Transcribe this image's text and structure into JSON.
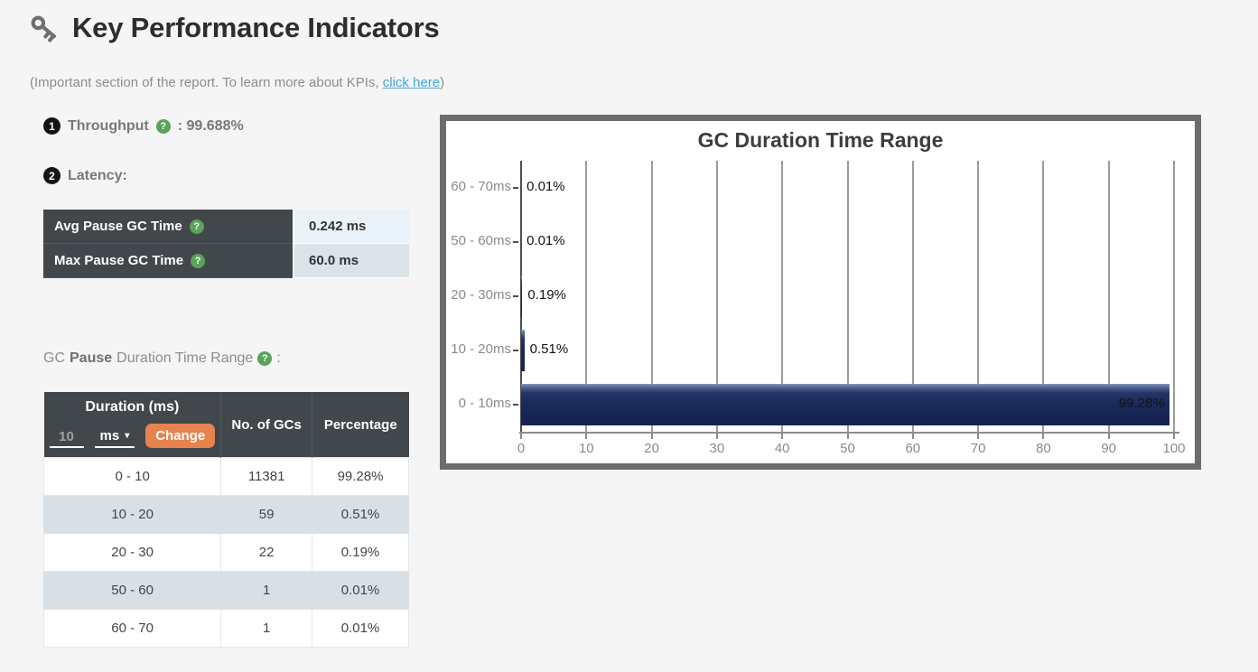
{
  "header": {
    "title": "Key Performance Indicators",
    "subtitle_prefix": "(Important section of the report. To learn more about KPIs, ",
    "subtitle_link": "click here",
    "subtitle_suffix": ")"
  },
  "icons": {
    "help": "?",
    "caret_down": "▾"
  },
  "kpi": {
    "items": [
      {
        "num": "1",
        "label": "Throughput",
        "suffix": ": 99.688%"
      },
      {
        "num": "2",
        "label": "Latency:",
        "suffix": ""
      }
    ]
  },
  "latency_table": {
    "rows": [
      {
        "label": "Avg Pause GC Time",
        "value": "0.242 ms"
      },
      {
        "label": "Max Pause GC Time",
        "value": "60.0 ms"
      }
    ]
  },
  "duration_section": {
    "heading_pre": "GC",
    "heading_bold": "Pause",
    "heading_post": "Duration Time Range",
    "colon": ":"
  },
  "duration_table": {
    "col1_header": "Duration (ms)",
    "input_value": "10",
    "unit_label": "ms",
    "change_button": "Change",
    "col2_header": "No. of GCs",
    "col3_header": "Percentage",
    "rows": [
      {
        "range": "0 - 10",
        "count": "11381",
        "pct": "99.28%"
      },
      {
        "range": "10 - 20",
        "count": "59",
        "pct": "0.51%"
      },
      {
        "range": "20 - 30",
        "count": "22",
        "pct": "0.19%"
      },
      {
        "range": "50 - 60",
        "count": "1",
        "pct": "0.01%"
      },
      {
        "range": "60 - 70",
        "count": "1",
        "pct": "0.01%"
      }
    ]
  },
  "chart_data": {
    "type": "bar",
    "orientation": "horizontal",
    "title": "GC Duration Time Range",
    "categories": [
      "60 - 70ms",
      "50 - 60ms",
      "20 - 30ms",
      "10 - 20ms",
      "0 - 10ms"
    ],
    "values": [
      0.01,
      0.01,
      0.19,
      0.51,
      99.28
    ],
    "value_labels": [
      "0.01%",
      "0.01%",
      "0.19%",
      "0.51%",
      "99.28%"
    ],
    "xlabel": "",
    "ylabel": "",
    "xlim": [
      0,
      100
    ],
    "x_ticks": [
      0,
      10,
      20,
      30,
      40,
      50,
      60,
      70,
      80,
      90,
      100
    ],
    "grid": true,
    "legend": false,
    "bar_color": "#1b2a5c"
  },
  "colors": {
    "page_bg": "#f5f5f6",
    "table_header_dark": "#42474b",
    "row_alt_blue": "#d9e0e5",
    "value_cell_blue": "#e9f2f9",
    "accent_orange": "#e8824e",
    "link_blue": "#45a7dd",
    "help_green": "#5aa35a",
    "bar_navy": "#1b2a5c"
  }
}
